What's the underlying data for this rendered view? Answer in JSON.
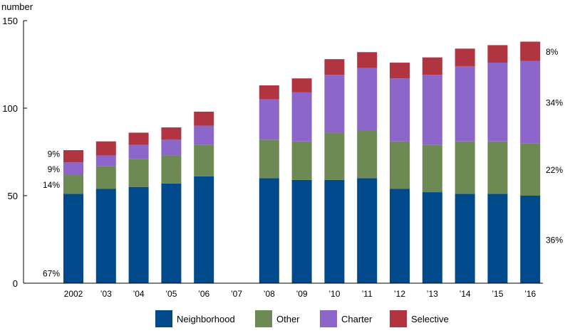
{
  "chart_data": {
    "type": "bar",
    "stacked": true,
    "ylabel": "number",
    "ylim": [
      0,
      150
    ],
    "yticks": [
      0,
      50,
      100,
      150
    ],
    "grid": false,
    "legend_position": "bottom",
    "categories": [
      "2002",
      "’03",
      "’04",
      "’05",
      "’06",
      "’07",
      "’08",
      "’09",
      "’10",
      "’11",
      "’12",
      "’13",
      "’14",
      "’15",
      "’16"
    ],
    "series": [
      {
        "name": "Neighborhood",
        "color": "#004a8c",
        "values": [
          51,
          54,
          55,
          57,
          61,
          null,
          60,
          59,
          59,
          60,
          54,
          52,
          51,
          51,
          50
        ]
      },
      {
        "name": "Other",
        "color": "#6d8a55",
        "values": [
          11,
          13,
          16,
          16,
          18,
          null,
          22,
          22,
          27,
          27,
          27,
          27,
          30,
          30,
          30
        ]
      },
      {
        "name": "Charter",
        "color": "#8c66c8",
        "values": [
          7,
          6,
          8,
          9,
          11,
          null,
          23,
          28,
          33,
          36,
          36,
          40,
          43,
          45,
          47
        ]
      },
      {
        "name": "Selective",
        "color": "#b03540",
        "values": [
          7,
          8,
          7,
          7,
          8,
          null,
          8,
          8,
          9,
          9,
          9,
          10,
          10,
          10,
          11
        ]
      }
    ],
    "left_share_labels": [
      "67%",
      "14%",
      "9%",
      "9%"
    ],
    "right_share_labels": [
      "36%",
      "22%",
      "34%",
      "8%"
    ]
  }
}
